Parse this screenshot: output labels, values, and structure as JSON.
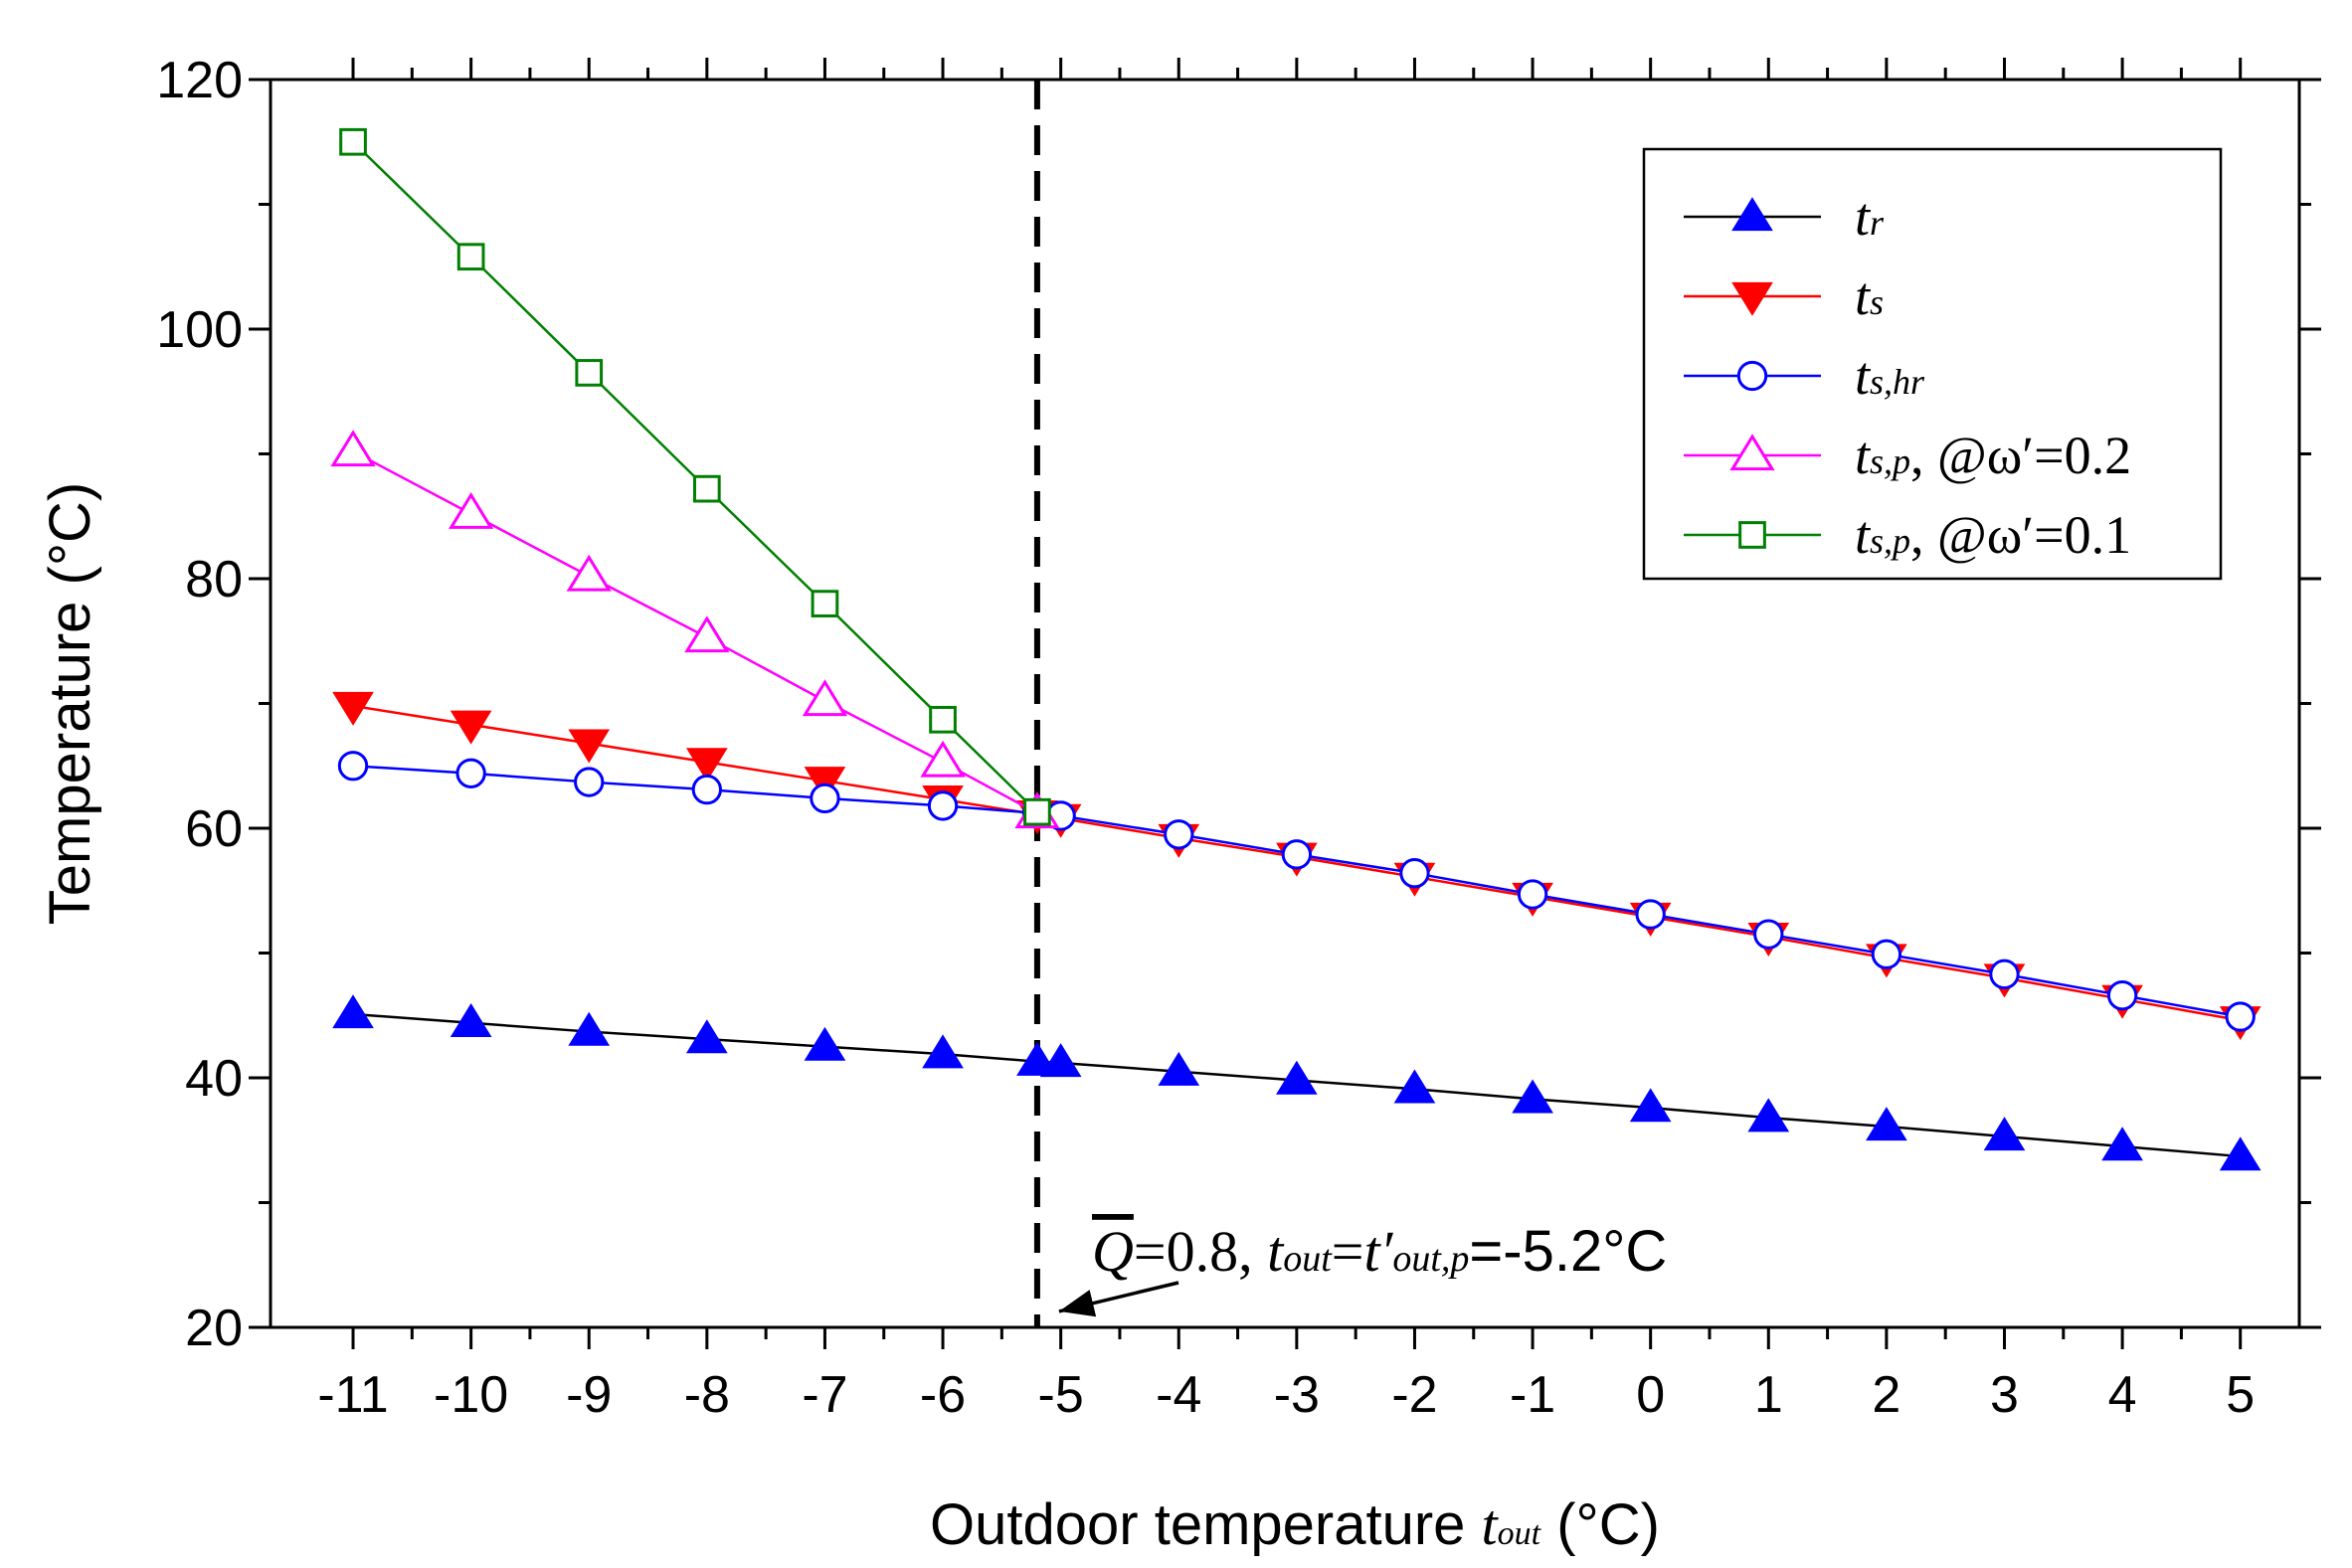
{
  "chart_data": {
    "type": "line",
    "title": "",
    "xlabel": "Outdoor temperature",
    "xlabel_var": "t",
    "xlabel_sub": "out",
    "xlabel_unit": "(°C)",
    "ylabel": "Temperature (°C)",
    "xlim": [
      -11.7,
      5.5
    ],
    "ylim": [
      20,
      120
    ],
    "x_ticks": [
      -11,
      -10,
      -9,
      -8,
      -7,
      -6,
      -5,
      -4,
      -3,
      -2,
      -1,
      0,
      1,
      2,
      3,
      4,
      5
    ],
    "x_tick_labels": [
      "-11",
      "-10",
      "-9",
      "-8",
      "-7",
      "-6",
      "-5",
      "-4",
      "-3",
      "-2",
      "-1",
      "0",
      "1",
      "2",
      "3",
      "4",
      "5"
    ],
    "y_ticks": [
      20,
      40,
      60,
      80,
      100,
      120
    ],
    "y_tick_labels": [
      "20",
      "40",
      "60",
      "80",
      "100",
      "120"
    ],
    "legend_position": "top-right",
    "series": [
      {
        "name": "tr",
        "legend_main": "t",
        "legend_sub": "r",
        "legend_suffix": "",
        "color": "#000000",
        "marker": "triangle-up",
        "marker_color": "#0000ff",
        "marker_filled": true,
        "x": [
          -11,
          -10,
          -9,
          -8,
          -7,
          -6,
          -5.2,
          -5,
          -4,
          -3,
          -2,
          -1,
          0,
          1,
          2,
          3,
          4,
          5
        ],
        "values": [
          45.1,
          44.4,
          43.7,
          43.1,
          42.5,
          41.9,
          41.3,
          41.2,
          40.5,
          39.8,
          39.1,
          38.3,
          37.6,
          36.8,
          36.1,
          35.3,
          34.5,
          33.7
        ]
      },
      {
        "name": "ts",
        "legend_main": "t",
        "legend_sub": "s",
        "legend_suffix": "",
        "color": "#ff0000",
        "marker": "triangle-down",
        "marker_color": "#ff0000",
        "marker_filled": true,
        "x": [
          -11,
          -10,
          -9,
          -8,
          -7,
          -6,
          -5.2,
          -5,
          -4,
          -3,
          -2,
          -1,
          0,
          1,
          2,
          3,
          4,
          5
        ],
        "values": [
          69.8,
          68.3,
          66.8,
          65.3,
          63.8,
          62.3,
          61.1,
          60.8,
          59.2,
          57.7,
          56.1,
          54.5,
          52.9,
          51.3,
          49.6,
          48.0,
          46.3,
          44.6
        ]
      },
      {
        "name": "ts,hr",
        "legend_main": "t",
        "legend_sub": "s,hr",
        "legend_suffix": "",
        "color": "#0000ff",
        "marker": "circle",
        "marker_color": "#0000ff",
        "marker_filled": false,
        "x": [
          -11,
          -10,
          -9,
          -8,
          -7,
          -6,
          -5.2,
          -5,
          -4,
          -3,
          -2,
          -1,
          0,
          1,
          2,
          3,
          4,
          5
        ],
        "values": [
          65.0,
          64.4,
          63.7,
          63.1,
          62.4,
          61.8,
          61.2,
          61.0,
          59.5,
          57.9,
          56.4,
          54.7,
          53.1,
          51.5,
          49.9,
          48.3,
          46.6,
          44.9
        ]
      },
      {
        "name": "ts,p, @ω'=0.2",
        "legend_main": "t",
        "legend_sub": "s,p",
        "legend_suffix": ", @ω′=0.2",
        "color": "#ff00ff",
        "marker": "triangle-up",
        "marker_color": "#ff00ff",
        "marker_filled": false,
        "x": [
          -11,
          -10,
          -9,
          -8,
          -7,
          -6,
          -5.2
        ],
        "values": [
          90.2,
          85.2,
          80.2,
          75.3,
          70.2,
          65.3,
          61.2
        ]
      },
      {
        "name": "ts,p, @ω'=0.1",
        "legend_main": "t",
        "legend_sub": "s,p",
        "legend_suffix": ", @ω′=0.1",
        "color": "#008000",
        "marker": "square",
        "marker_color": "#008000",
        "marker_filled": false,
        "x": [
          -11,
          -10,
          -9,
          -8,
          -7,
          -6,
          -5.2
        ],
        "values": [
          115.0,
          105.8,
          96.5,
          87.2,
          78.0,
          68.7,
          61.3
        ]
      }
    ],
    "reference_line": {
      "x": -5.2,
      "style": "dashed",
      "color": "#000000"
    },
    "annotation": {
      "q": "Q",
      "q_rest": "=0.8, ",
      "t_out_main": "t",
      "t_out_sub": "out",
      "eq": "=",
      "t_prime_main": "t′",
      "t_prime_sub": "out,p",
      "value_text": "=-5.2°C",
      "arrow_target_x": -5.2,
      "arrow_target_y": 22.0
    }
  }
}
